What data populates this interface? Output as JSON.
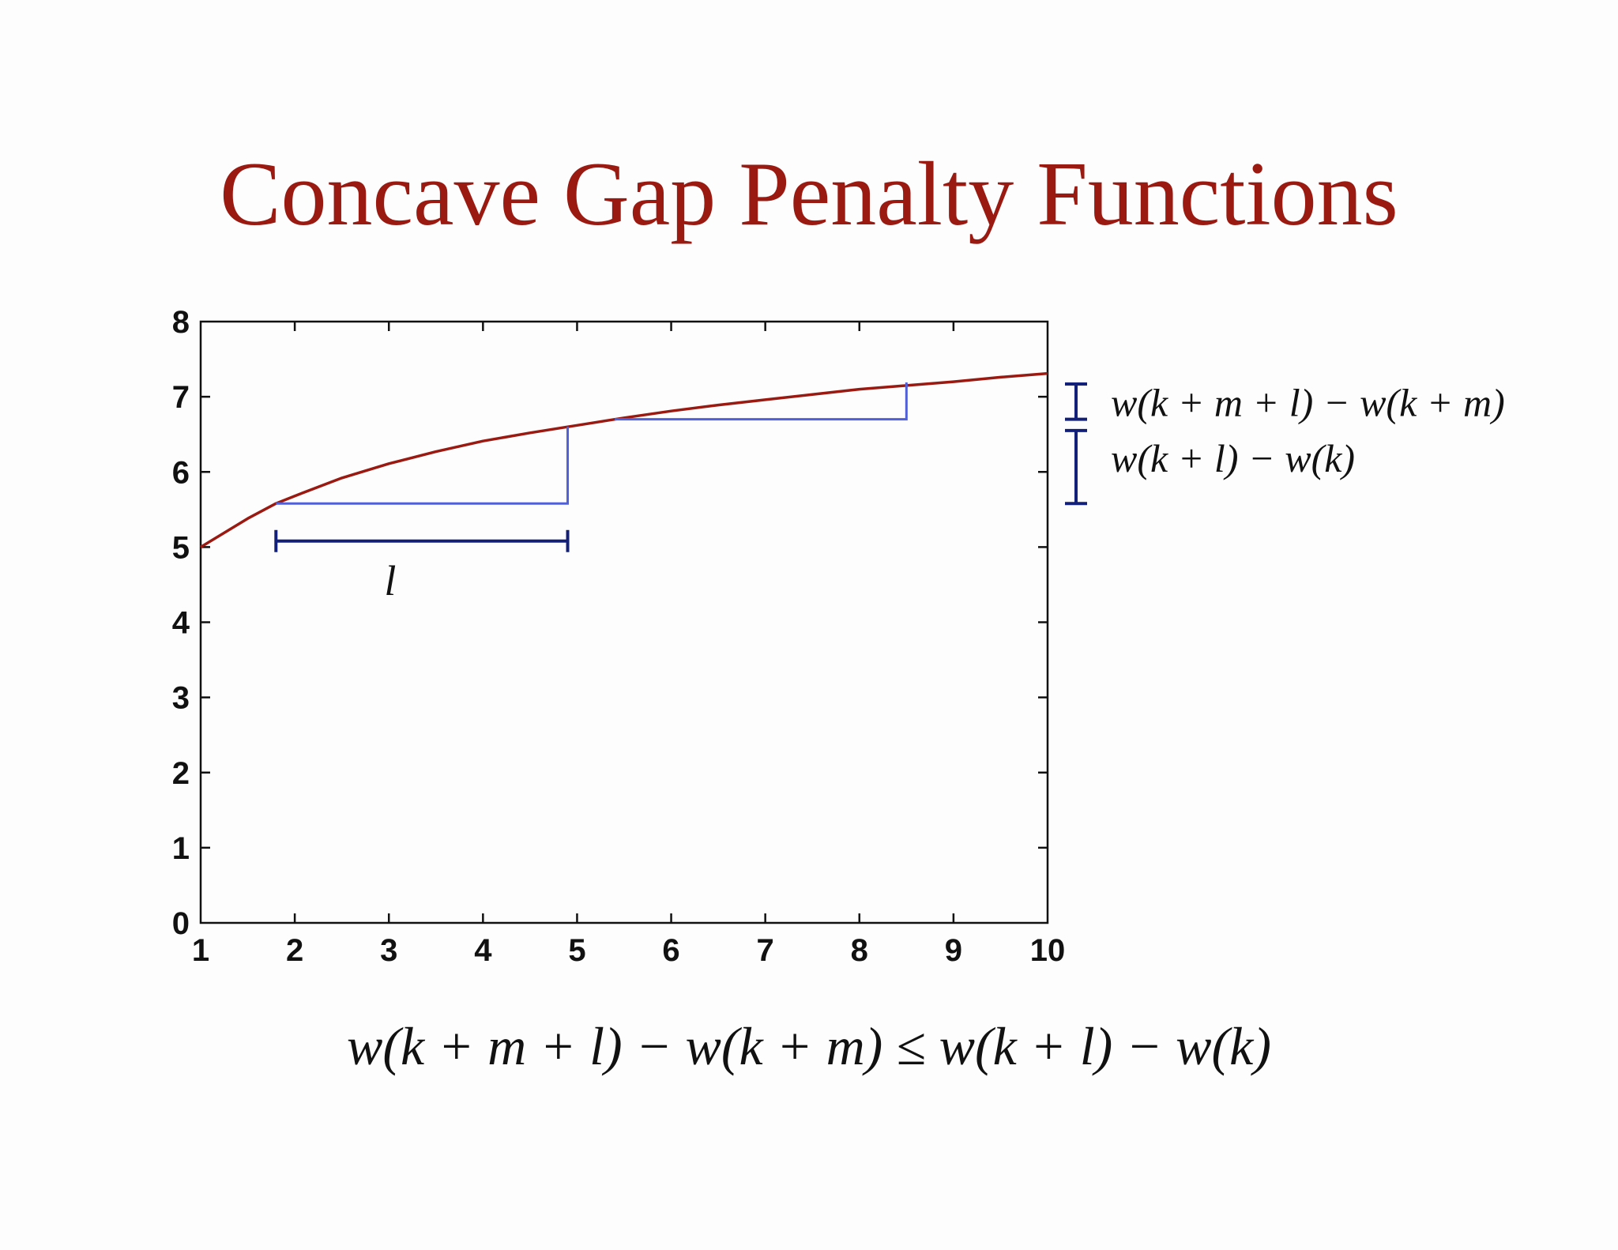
{
  "slide": {
    "title": "Concave Gap Penalty Functions",
    "inequality": "w(k + m + l) − w(k + m) ≤ w(k + l) − w(k)"
  },
  "chart_data": {
    "type": "line",
    "title": "",
    "xlabel": "",
    "ylabel": "",
    "xlim": [
      1,
      10
    ],
    "ylim": [
      0,
      8
    ],
    "x_ticks": [
      "1",
      "2",
      "3",
      "4",
      "5",
      "6",
      "7",
      "8",
      "9",
      "10"
    ],
    "y_ticks": [
      "0",
      "1",
      "2",
      "3",
      "4",
      "5",
      "6",
      "7",
      "8"
    ],
    "grid": false,
    "series": [
      {
        "color": "#9a1a12",
        "x": [
          1,
          1.5,
          1.8,
          2,
          2.5,
          3,
          3.5,
          4,
          4.5,
          4.9,
          5,
          5.5,
          6,
          6.5,
          7,
          7.5,
          8,
          8.5,
          9,
          9.5,
          10
        ],
        "y": [
          5.0,
          5.38,
          5.58,
          5.68,
          5.92,
          6.11,
          6.27,
          6.41,
          6.52,
          6.6,
          6.62,
          6.72,
          6.81,
          6.89,
          6.96,
          7.03,
          7.1,
          7.15,
          7.2,
          7.26,
          7.31
        ]
      }
    ],
    "annotations": {
      "step_color": "#5060d8",
      "bracket_color": "#13207a",
      "step1": {
        "x_start": 1.8,
        "x_end": 4.9,
        "y_low": 5.58,
        "y_high": 6.6
      },
      "step2": {
        "x_start": 5.4,
        "x_end": 8.5,
        "y_low": 6.7,
        "y_high": 7.19
      },
      "l_bracket": {
        "x_start": 1.8,
        "x_end": 4.9,
        "y": 5.08,
        "label": "l"
      },
      "diff_large": {
        "y_low": 5.58,
        "y_high": 6.55,
        "label": "w(k + l) − w(k)"
      },
      "diff_small": {
        "y_low": 6.7,
        "y_high": 7.17,
        "label": "w(k + m + l) − w(k + m)"
      }
    }
  }
}
